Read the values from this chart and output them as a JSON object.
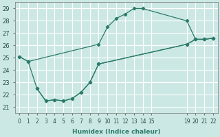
{
  "background_color": "#cce8e4",
  "grid_color": "#ffffff",
  "line_color": "#2a7a6a",
  "ylabel_values": [
    21,
    22,
    23,
    24,
    25,
    26,
    27,
    28,
    29
  ],
  "xlabel_values": [
    0,
    1,
    2,
    3,
    4,
    5,
    6,
    7,
    8,
    9,
    10,
    11,
    12,
    13,
    14,
    15,
    19,
    20,
    21,
    22
  ],
  "xlabel": "Humidex (Indice chaleur)",
  "ylim": [
    20.5,
    29.5
  ],
  "line1_x": [
    0,
    1,
    9,
    10,
    11,
    12,
    13,
    14,
    19,
    20,
    21,
    22
  ],
  "line1_y": [
    25.1,
    24.7,
    26.1,
    27.5,
    28.2,
    28.55,
    29.0,
    29.0,
    28.0,
    26.5,
    26.5,
    26.6
  ],
  "line2_x": [
    0,
    1,
    2,
    3,
    4,
    5,
    6,
    7,
    8,
    9,
    19,
    20,
    21,
    22
  ],
  "line2_y": [
    25.1,
    24.7,
    22.5,
    21.5,
    21.6,
    21.5,
    21.7,
    22.2,
    23.0,
    24.5,
    26.1,
    26.5,
    26.5,
    26.6
  ],
  "line3_x": [
    2,
    3,
    4,
    5,
    6,
    7,
    8,
    9,
    19,
    20,
    21,
    22
  ],
  "line3_y": [
    22.5,
    21.5,
    21.6,
    21.5,
    21.7,
    22.2,
    23.0,
    24.5,
    26.1,
    26.5,
    26.5,
    26.6
  ],
  "tick_label_fontsize": 5.5,
  "ylabel_fontsize": 6.0,
  "xlabel_fontsize": 6.5
}
